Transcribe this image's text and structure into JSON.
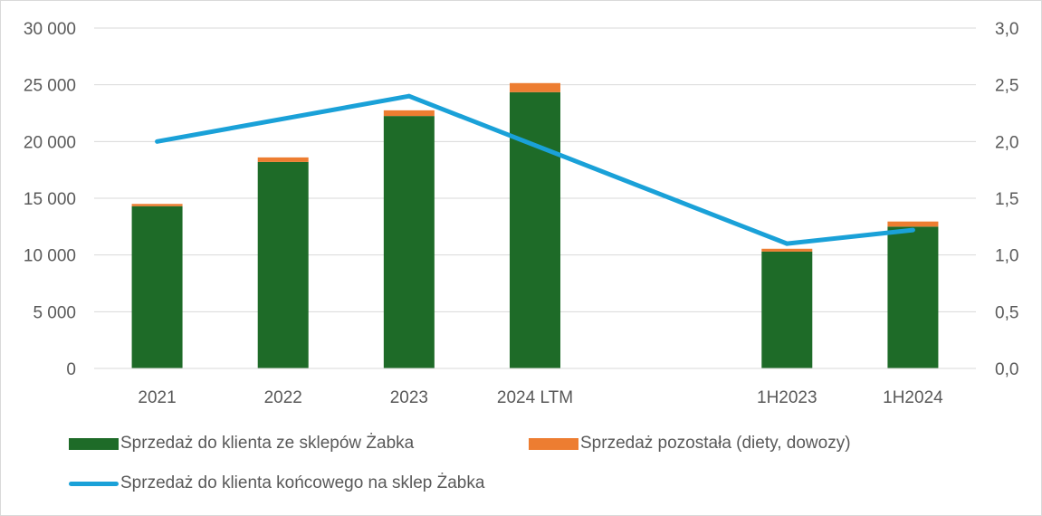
{
  "chart_data": {
    "type": "bar",
    "stacked": true,
    "categories": [
      "2021",
      "2022",
      "2023",
      "2024 LTM",
      "",
      "1H2023",
      "1H2024"
    ],
    "series": [
      {
        "name": "Sprzedaż do klienta ze sklepów Żabka",
        "kind": "bar",
        "axis": "left",
        "color": "#1e6b28",
        "values": [
          14300,
          18200,
          22250,
          24350,
          null,
          10300,
          12500
        ]
      },
      {
        "name": "Sprzedaż pozostała (diety, dowozy)",
        "kind": "bar",
        "axis": "left",
        "color": "#ed7d31",
        "values": [
          200,
          400,
          500,
          800,
          null,
          250,
          450
        ]
      },
      {
        "name": "Sprzedaż do klienta końcowego na sklep Żabka",
        "kind": "line",
        "axis": "right",
        "color": "#1aa1d8",
        "values": [
          2.0,
          null,
          2.4,
          null,
          null,
          1.1,
          1.22
        ]
      }
    ],
    "y_left": {
      "min": 0,
      "max": 30000,
      "step": 5000,
      "ticks": [
        "0",
        "5 000",
        "10 000",
        "15 000",
        "20 000",
        "25 000",
        "30 000"
      ]
    },
    "y_right": {
      "min": 0,
      "max": 3.0,
      "step": 0.5,
      "ticks": [
        "0,0",
        "0,5",
        "1,0",
        "1,5",
        "2,0",
        "2,5",
        "3,0"
      ]
    },
    "grid": true,
    "legend_position": "bottom"
  }
}
